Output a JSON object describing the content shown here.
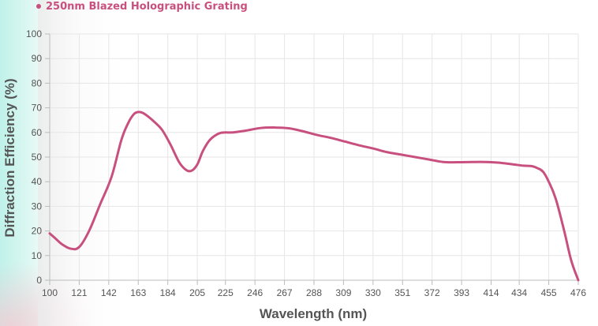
{
  "chart_data": {
    "type": "line",
    "legend_position": "top-left",
    "grid": true,
    "xlabel": "Wavelength (nm)",
    "ylabel": "Diffraction Efficiency (%)",
    "ylim": [
      0,
      100
    ],
    "y_ticks": [
      "0",
      "10",
      "20",
      "30",
      "40",
      "50",
      "60",
      "70",
      "80",
      "90",
      "100"
    ],
    "x_ticks": [
      "100",
      "121",
      "142",
      "163",
      "184",
      "205",
      "225",
      "246",
      "267",
      "288",
      "309",
      "330",
      "351",
      "372",
      "393",
      "414",
      "434",
      "455",
      "476"
    ],
    "x": [
      100,
      104,
      109,
      115,
      121,
      128,
      136,
      144,
      151,
      156,
      160,
      163,
      166,
      170,
      175,
      180,
      186,
      192,
      197,
      201,
      205,
      209,
      214,
      220,
      225,
      230,
      240,
      250,
      260,
      270,
      280,
      290,
      300,
      310,
      320,
      330,
      340,
      350,
      360,
      370,
      380,
      390,
      400,
      410,
      420,
      430,
      437,
      443,
      447,
      451,
      455,
      460,
      466,
      471,
      476
    ],
    "series": [
      {
        "name": "250nm Blazed Holographic Grating",
        "color": "#c8507e",
        "values": [
          19,
          17,
          14.5,
          12.8,
          13.5,
          20,
          31,
          42,
          57,
          64,
          67.5,
          68.3,
          68,
          66.5,
          64,
          61,
          55,
          48,
          44.8,
          44.5,
          47,
          52.5,
          57,
          59.5,
          60,
          60,
          60.8,
          61.8,
          62,
          61.7,
          60.5,
          59,
          57.8,
          56.3,
          54.8,
          53.5,
          52,
          51,
          50,
          49,
          48,
          47.9,
          48,
          48,
          47.7,
          47,
          46.5,
          46.3,
          45.5,
          44,
          40,
          33,
          20,
          8,
          0
        ]
      }
    ]
  },
  "colors": {
    "line": "#c8507e",
    "grid": "#e6e6e6",
    "axis": "#bbbbbb",
    "text": "#555555"
  }
}
